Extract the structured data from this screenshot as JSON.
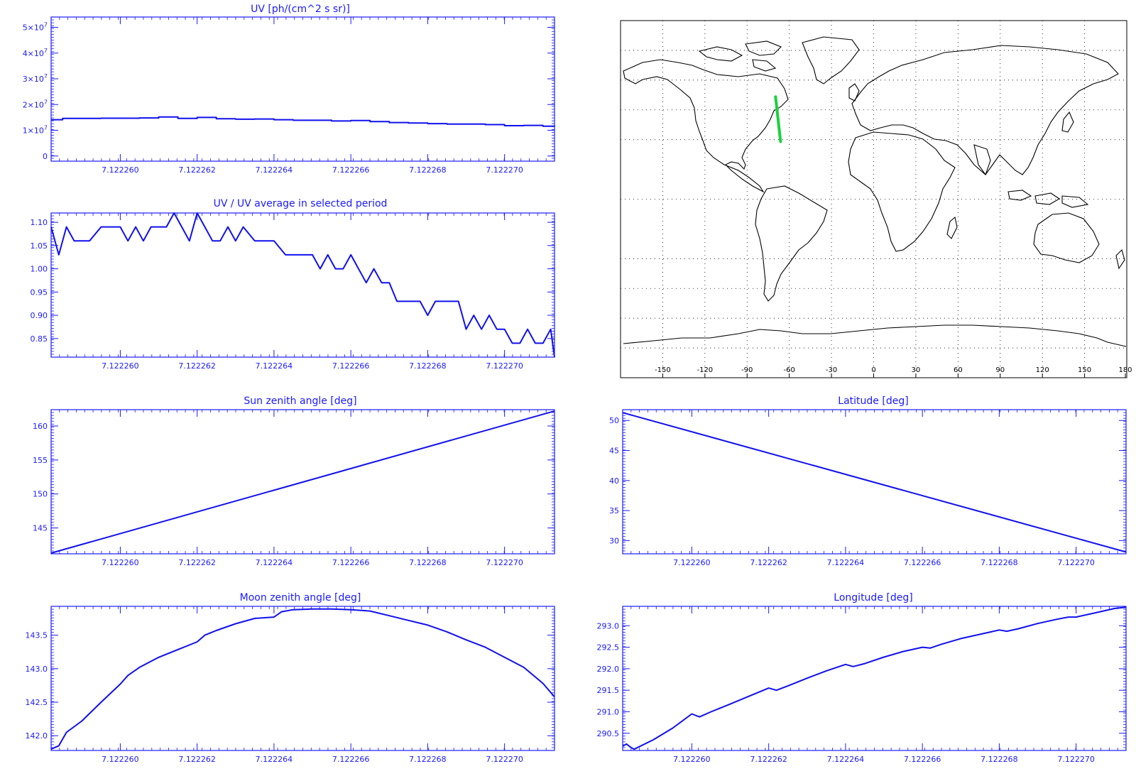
{
  "colors": {
    "axes": "#1a1aff",
    "series": "#1010ee",
    "map_outline": "#000000",
    "map_track": "#19d23c"
  },
  "chart_data": [
    {
      "id": "uv",
      "type": "line",
      "title": "UV [ph/(cm^2 s sr)]",
      "xlim": [
        7.1222582,
        7.1222713
      ],
      "ylim": [
        -2000000.0,
        54000000.0
      ],
      "xticks": [
        7.12226,
        7.122262,
        7.122264,
        7.122266,
        7.122268,
        7.12227
      ],
      "xtick_labels": [
        "7.122260",
        "7.122262",
        "7.122264",
        "7.122266",
        "7.122268",
        "7.122270"
      ],
      "yticks": [
        0,
        10000000.0,
        20000000.0,
        30000000.0,
        40000000.0,
        50000000.0
      ],
      "ytick_labels": [
        {
          "base": "0",
          "exp": ""
        },
        {
          "base": "1×10",
          "exp": "7"
        },
        {
          "base": "2×10",
          "exp": "7"
        },
        {
          "base": "3×10",
          "exp": "7"
        },
        {
          "base": "4×10",
          "exp": "7"
        },
        {
          "base": "5×10",
          "exp": "7"
        }
      ],
      "step": true,
      "series": [
        {
          "x": [
            7.1222582,
            7.1222585,
            7.122259,
            7.1222595,
            7.12226,
            7.1222605,
            7.122261,
            7.1222615,
            7.122262,
            7.1222625,
            7.122263,
            7.1222635,
            7.122264,
            7.1222645,
            7.122265,
            7.1222655,
            7.122266,
            7.1222665,
            7.122267,
            7.1222675,
            7.122268,
            7.1222685,
            7.122269,
            7.1222695,
            7.12227,
            7.1222705,
            7.122271,
            7.1222713
          ],
          "y": [
            14100000.0,
            14600000.0,
            14600000.0,
            14700000.0,
            14700000.0,
            14800000.0,
            15200000.0,
            14600000.0,
            15000000.0,
            14500000.0,
            14300000.0,
            14400000.0,
            14100000.0,
            13900000.0,
            13900000.0,
            13600000.0,
            13800000.0,
            13400000.0,
            13000000.0,
            12800000.0,
            12600000.0,
            12400000.0,
            12400000.0,
            12200000.0,
            11800000.0,
            11900000.0,
            11600000.0,
            11400000.0
          ]
        }
      ]
    },
    {
      "id": "uvavg",
      "type": "line",
      "title": "UV / UV average in selected period",
      "xlim": [
        7.1222582,
        7.1222713
      ],
      "ylim": [
        0.81,
        1.12
      ],
      "xticks": [
        7.12226,
        7.122262,
        7.122264,
        7.122266,
        7.122268,
        7.12227
      ],
      "xtick_labels": [
        "7.122260",
        "7.122262",
        "7.122264",
        "7.122266",
        "7.122268",
        "7.122270"
      ],
      "yticks": [
        0.85,
        0.9,
        0.95,
        1.0,
        1.05,
        1.1
      ],
      "ytick_labels": [
        "0.85",
        "0.90",
        "0.95",
        "1.00",
        "1.05",
        "1.10"
      ],
      "series": [
        {
          "x": [
            7.1222582,
            7.1222584,
            7.1222586,
            7.1222588,
            7.122259,
            7.1222592,
            7.1222595,
            7.12226,
            7.1222602,
            7.1222604,
            7.1222606,
            7.1222608,
            7.122261,
            7.1222612,
            7.1222614,
            7.1222616,
            7.1222618,
            7.122262,
            7.1222622,
            7.1222624,
            7.1222626,
            7.1222628,
            7.122263,
            7.1222632,
            7.1222635,
            7.122264,
            7.1222643,
            7.1222646,
            7.122265,
            7.1222652,
            7.1222654,
            7.1222656,
            7.1222658,
            7.122266,
            7.1222662,
            7.1222664,
            7.1222666,
            7.1222668,
            7.122267,
            7.1222672,
            7.1222675,
            7.1222678,
            7.122268,
            7.1222682,
            7.1222685,
            7.1222688,
            7.122269,
            7.1222692,
            7.1222694,
            7.1222696,
            7.1222698,
            7.12227,
            7.1222702,
            7.1222704,
            7.1222706,
            7.1222708,
            7.122271,
            7.1222712,
            7.1222713
          ],
          "y": [
            1.09,
            1.03,
            1.09,
            1.06,
            1.06,
            1.06,
            1.09,
            1.09,
            1.06,
            1.09,
            1.06,
            1.09,
            1.09,
            1.09,
            1.12,
            1.09,
            1.06,
            1.12,
            1.09,
            1.06,
            1.06,
            1.09,
            1.06,
            1.09,
            1.06,
            1.06,
            1.03,
            1.03,
            1.03,
            1.0,
            1.03,
            1.0,
            1.0,
            1.03,
            1.0,
            0.97,
            1.0,
            0.97,
            0.97,
            0.93,
            0.93,
            0.93,
            0.9,
            0.93,
            0.93,
            0.93,
            0.87,
            0.9,
            0.87,
            0.9,
            0.87,
            0.87,
            0.84,
            0.84,
            0.87,
            0.84,
            0.84,
            0.87,
            0.81
          ]
        }
      ]
    },
    {
      "id": "map",
      "type": "map",
      "xlim": [
        -180,
        180
      ],
      "ylim": [
        -90,
        90
      ],
      "xticks": [
        -150,
        -120,
        -90,
        -60,
        -30,
        0,
        30,
        60,
        90,
        120,
        150,
        180
      ],
      "xtick_labels": [
        "-150",
        "-120",
        "-90",
        "-60",
        "-30",
        "0",
        "30",
        "60",
        "90",
        "120",
        "150",
        "180"
      ],
      "grid": true,
      "track": {
        "lon": [
          -66.2,
          -69.8
        ],
        "lat": [
          29.0,
          51.6
        ]
      }
    },
    {
      "id": "sza",
      "type": "line",
      "title": "Sun zenith angle [deg]",
      "xlim": [
        7.1222582,
        7.1222713
      ],
      "ylim": [
        141.2,
        162.4
      ],
      "xticks": [
        7.12226,
        7.122262,
        7.122264,
        7.122266,
        7.122268,
        7.12227
      ],
      "xtick_labels": [
        "7.122260",
        "7.122262",
        "7.122264",
        "7.122266",
        "7.122268",
        "7.122270"
      ],
      "yticks": [
        145,
        150,
        155,
        160
      ],
      "ytick_labels": [
        "145",
        "150",
        "155",
        "160"
      ],
      "series": [
        {
          "x": [
            7.1222582,
            7.1222713
          ],
          "y": [
            141.3,
            162.2
          ]
        }
      ]
    },
    {
      "id": "lat",
      "type": "line",
      "title": "Latitude [deg]",
      "xlim": [
        7.1222582,
        7.1222713
      ],
      "ylim": [
        27.8,
        51.8
      ],
      "xticks": [
        7.12226,
        7.122262,
        7.122264,
        7.122266,
        7.122268,
        7.12227
      ],
      "xtick_labels": [
        "7.122260",
        "7.122262",
        "7.122264",
        "7.122266",
        "7.122268",
        "7.122270"
      ],
      "yticks": [
        30,
        35,
        40,
        45,
        50
      ],
      "ytick_labels": [
        "30",
        "35",
        "40",
        "45",
        "50"
      ],
      "series": [
        {
          "x": [
            7.1222582,
            7.1222713
          ],
          "y": [
            51.3,
            28.1
          ]
        }
      ]
    },
    {
      "id": "mza",
      "type": "line",
      "title": "Moon zenith angle [deg]",
      "xlim": [
        7.1222582,
        7.1222713
      ],
      "ylim": [
        141.78,
        143.93
      ],
      "xticks": [
        7.12226,
        7.122262,
        7.122264,
        7.122266,
        7.122268,
        7.12227
      ],
      "xtick_labels": [
        "7.122260",
        "7.122262",
        "7.122264",
        "7.122266",
        "7.122268",
        "7.122270"
      ],
      "yticks": [
        142.0,
        142.5,
        143.0,
        143.5
      ],
      "ytick_labels": [
        "142.0",
        "142.5",
        "143.0",
        "143.5"
      ],
      "series": [
        {
          "x": [
            7.1222582,
            7.1222584,
            7.1222586,
            7.122259,
            7.1222595,
            7.12226,
            7.1222602,
            7.1222605,
            7.122261,
            7.122262,
            7.1222622,
            7.1222625,
            7.122263,
            7.1222635,
            7.122264,
            7.1222642,
            7.1222645,
            7.122265,
            7.1222655,
            7.122266,
            7.1222665,
            7.122267,
            7.1222675,
            7.122268,
            7.1222685,
            7.122269,
            7.1222695,
            7.12227,
            7.1222705,
            7.122271,
            7.1222713
          ],
          "y": [
            141.8,
            141.85,
            142.05,
            142.22,
            142.5,
            142.77,
            142.9,
            143.02,
            143.17,
            143.4,
            143.5,
            143.57,
            143.67,
            143.75,
            143.77,
            143.85,
            143.88,
            143.89,
            143.89,
            143.88,
            143.86,
            143.79,
            143.72,
            143.65,
            143.55,
            143.43,
            143.32,
            143.17,
            143.02,
            142.78,
            142.58
          ]
        }
      ]
    },
    {
      "id": "lon",
      "type": "line",
      "title": "Longitude [deg]",
      "xlim": [
        7.1222582,
        7.1222713
      ],
      "ylim": [
        290.1,
        293.45
      ],
      "xticks": [
        7.12226,
        7.122262,
        7.122264,
        7.122266,
        7.122268,
        7.12227
      ],
      "xtick_labels": [
        "7.122260",
        "7.122262",
        "7.122264",
        "7.122266",
        "7.122268",
        "7.122270"
      ],
      "yticks": [
        290.5,
        291.0,
        291.5,
        292.0,
        292.5,
        293.0
      ],
      "ytick_labels": [
        "290.5",
        "291.0",
        "291.5",
        "292.0",
        "292.5",
        "293.0"
      ],
      "series": [
        {
          "x": [
            7.1222582,
            7.1222583,
            7.1222584,
            7.1222585,
            7.122259,
            7.1222595,
            7.12226,
            7.1222602,
            7.1222605,
            7.122261,
            7.122262,
            7.1222622,
            7.1222625,
            7.122263,
            7.1222635,
            7.122264,
            7.1222642,
            7.1222645,
            7.122265,
            7.1222655,
            7.122266,
            7.1222662,
            7.1222665,
            7.122267,
            7.1222675,
            7.122268,
            7.1222682,
            7.1222685,
            7.122269,
            7.1222695,
            7.1222698,
            7.12227,
            7.1222705,
            7.122271,
            7.1222713
          ],
          "y": [
            290.2,
            290.25,
            290.18,
            290.13,
            290.35,
            290.62,
            290.95,
            290.88,
            291.0,
            291.18,
            291.55,
            291.5,
            291.6,
            291.78,
            291.95,
            292.1,
            292.05,
            292.12,
            292.27,
            292.4,
            292.5,
            292.48,
            292.57,
            292.7,
            292.8,
            292.9,
            292.87,
            292.93,
            293.05,
            293.15,
            293.2,
            293.2,
            293.3,
            293.4,
            293.43
          ]
        }
      ]
    }
  ]
}
